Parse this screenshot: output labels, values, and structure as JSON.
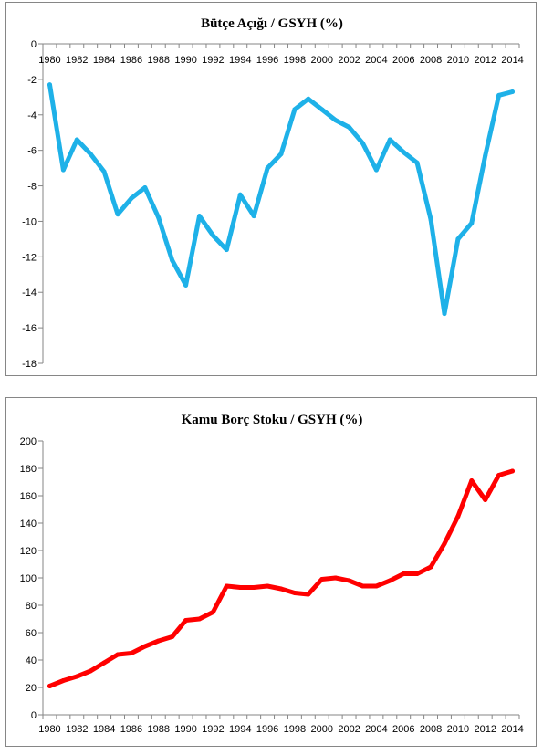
{
  "chart_data": [
    {
      "type": "line",
      "title": "Bütçe Açığı / GSYH (%)",
      "xlabel": "",
      "ylabel": "",
      "color": "#1eb1e8",
      "ylim": [
        -18,
        0
      ],
      "yticks": [
        "0",
        "-2",
        "-4",
        "-6",
        "-8",
        "-10",
        "-12",
        "-14",
        "-16",
        "-18"
      ],
      "xtick_labels": [
        "1980",
        "1982",
        "1984",
        "1986",
        "1988",
        "1990",
        "1992",
        "1994",
        "1996",
        "1998",
        "2000",
        "2002",
        "2004",
        "2006",
        "2008",
        "2010",
        "2012",
        "2014"
      ],
      "x_axis_position": "top",
      "grid": false,
      "x": [
        1980,
        1981,
        1982,
        1983,
        1984,
        1985,
        1986,
        1987,
        1988,
        1989,
        1990,
        1991,
        1992,
        1993,
        1994,
        1995,
        1996,
        1997,
        1998,
        1999,
        2000,
        2001,
        2002,
        2003,
        2004,
        2005,
        2006,
        2007,
        2008,
        2009,
        2010,
        2011,
        2012,
        2013,
        2014
      ],
      "values": [
        -2.3,
        -7.1,
        -5.4,
        -6.2,
        -7.2,
        -9.6,
        -8.7,
        -8.1,
        -9.8,
        -12.2,
        -13.6,
        -9.7,
        -10.8,
        -11.6,
        -8.5,
        -9.7,
        -7.0,
        -6.2,
        -3.7,
        -3.1,
        -3.7,
        -4.3,
        -4.7,
        -5.6,
        -7.1,
        -5.4,
        -6.1,
        -6.7,
        -9.9,
        -15.2,
        -11.0,
        -10.1,
        -6.3,
        -2.9,
        -2.7
      ]
    },
    {
      "type": "line",
      "title": "Kamu Borç Stoku / GSYH (%)",
      "xlabel": "",
      "ylabel": "",
      "color": "#ff0000",
      "ylim": [
        0,
        200
      ],
      "yticks": [
        "0",
        "20",
        "40",
        "60",
        "80",
        "100",
        "120",
        "140",
        "160",
        "180",
        "200"
      ],
      "xtick_labels": [
        "1980",
        "1982",
        "1984",
        "1986",
        "1988",
        "1990",
        "1992",
        "1994",
        "1996",
        "1998",
        "2000",
        "2002",
        "2004",
        "2006",
        "2008",
        "2010",
        "2012",
        "2014"
      ],
      "x_axis_position": "bottom",
      "grid": false,
      "x": [
        1980,
        1981,
        1982,
        1983,
        1984,
        1985,
        1986,
        1987,
        1988,
        1989,
        1990,
        1991,
        1992,
        1993,
        1994,
        1995,
        1996,
        1997,
        1998,
        1999,
        2000,
        2001,
        2002,
        2003,
        2004,
        2005,
        2006,
        2007,
        2008,
        2009,
        2010,
        2011,
        2012,
        2013,
        2014
      ],
      "values": [
        21,
        25,
        28,
        32,
        38,
        44,
        45,
        50,
        54,
        57,
        69,
        70,
        75,
        94,
        93,
        93,
        94,
        92,
        89,
        88,
        99,
        100,
        98,
        94,
        94,
        98,
        103,
        103,
        108,
        125,
        145,
        171,
        157,
        175,
        178
      ]
    }
  ]
}
